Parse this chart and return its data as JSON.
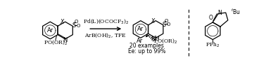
{
  "figsize": [
    3.78,
    0.93
  ],
  "dpi": 100,
  "background": "#ffffff",
  "reagent_line1": "Pd(L)(OCOCF₃)₂",
  "reagent_line2": "ArB(OH)₂, TFE",
  "product_label1": "20 examples",
  "product_label2": "Ee: up to 99%",
  "font_size": 5.5
}
